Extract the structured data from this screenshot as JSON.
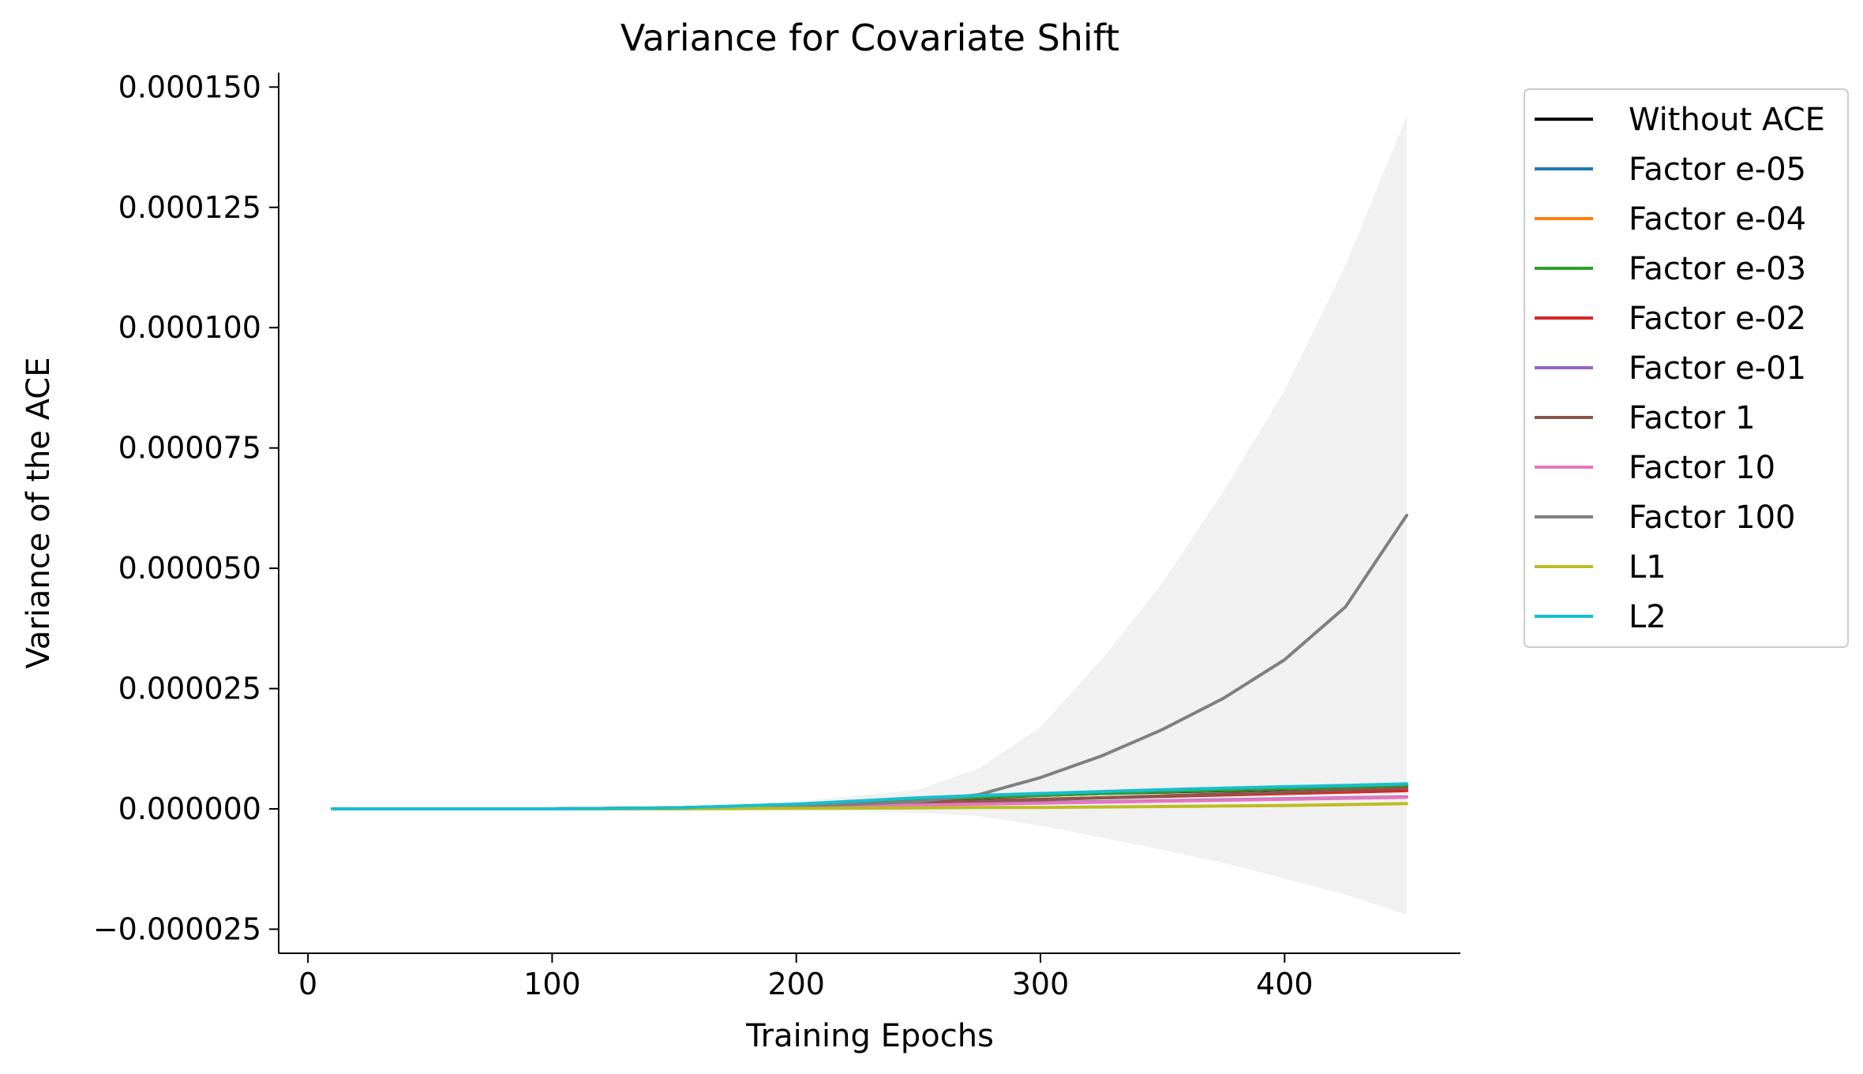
{
  "chart_data": {
    "type": "line",
    "title": "Variance for Covariate Shift",
    "xlabel": "Training Epochs",
    "ylabel": "Variance of the ACE",
    "xlim": [
      -12,
      472
    ],
    "ylim": [
      -3e-05,
      0.000153
    ],
    "x_ticks": [
      0,
      100,
      200,
      300,
      400
    ],
    "x_tick_labels": [
      "0",
      "100",
      "200",
      "300",
      "400"
    ],
    "y_ticks": [
      -2.5e-05,
      0,
      2.5e-05,
      5e-05,
      7.5e-05,
      0.0001,
      0.000125,
      0.00015
    ],
    "y_tick_labels": [
      "−0.000025",
      "0.000000",
      "0.000025",
      "0.000050",
      "0.000075",
      "0.000100",
      "0.000125",
      "0.000150"
    ],
    "grid": false,
    "legend_position": "outside-right",
    "x": [
      10,
      50,
      100,
      150,
      200,
      250,
      275,
      300,
      325,
      350,
      375,
      400,
      425,
      450
    ],
    "series": [
      {
        "name": "Without ACE",
        "color": "#000000",
        "values": [
          0,
          0,
          0,
          2e-07,
          8e-07,
          1.8e-06,
          2.3e-06,
          2.8e-06,
          3.2e-06,
          3.5e-06,
          3.8e-06,
          4.1e-06,
          4.4e-06,
          4.7e-06
        ]
      },
      {
        "name": "Factor e-05",
        "color": "#1f77b4",
        "values": [
          0,
          0,
          0,
          2e-07,
          9e-07,
          2e-06,
          2.5e-06,
          3e-06,
          3.4e-06,
          3.8e-06,
          4.1e-06,
          4.4e-06,
          4.7e-06,
          5e-06
        ]
      },
      {
        "name": "Factor e-04",
        "color": "#ff7f0e",
        "values": [
          0,
          0,
          0,
          2e-07,
          8e-07,
          1.9e-06,
          2.4e-06,
          2.9e-06,
          3.3e-06,
          3.6e-06,
          3.9e-06,
          4.2e-06,
          4.5e-06,
          4.8e-06
        ]
      },
      {
        "name": "Factor e-03",
        "color": "#2ca02c",
        "values": [
          0,
          0,
          0,
          2e-07,
          8e-07,
          1.9e-06,
          2.4e-06,
          2.8e-06,
          3.2e-06,
          3.6e-06,
          3.9e-06,
          4.2e-06,
          4.5e-06,
          4.7e-06
        ]
      },
      {
        "name": "Factor e-02",
        "color": "#d62728",
        "values": [
          0,
          0,
          0,
          1e-07,
          6e-07,
          1.3e-06,
          1.7e-06,
          2e-06,
          2.3e-06,
          2.6e-06,
          2.9e-06,
          3.2e-06,
          3.5e-06,
          3.8e-06
        ]
      },
      {
        "name": "Factor e-01",
        "color": "#9467bd",
        "values": [
          0,
          0,
          0,
          1e-07,
          4e-07,
          9e-07,
          1.1e-06,
          1.3e-06,
          1.5e-06,
          1.7e-06,
          1.9e-06,
          2.1e-06,
          2.3e-06,
          2.5e-06
        ]
      },
      {
        "name": "Factor 1",
        "color": "#8c564b",
        "values": [
          0,
          0,
          0,
          1e-07,
          5e-07,
          1.2e-06,
          1.6e-06,
          1.9e-06,
          2.3e-06,
          2.7e-06,
          3.1e-06,
          3.5e-06,
          3.9e-06,
          4.3e-06
        ]
      },
      {
        "name": "Factor 10",
        "color": "#e377c2",
        "values": [
          0,
          0,
          0,
          1e-07,
          4e-07,
          8e-07,
          1e-06,
          1.2e-06,
          1.4e-06,
          1.6e-06,
          1.8e-06,
          2e-06,
          2.2e-06,
          2.4e-06
        ]
      },
      {
        "name": "Factor 100",
        "color": "#7f7f7f",
        "values": [
          0,
          0,
          0,
          1e-07,
          5e-07,
          1.5e-06,
          3e-06,
          6.5e-06,
          1.1e-05,
          1.65e-05,
          2.3e-05,
          3.1e-05,
          4.2e-05,
          6.1e-05
        ],
        "band_lower": [
          0,
          0,
          0,
          0,
          -3e-07,
          -8e-07,
          -1.5e-06,
          -3.5e-06,
          -6e-06,
          -8.5e-06,
          -1.12e-05,
          -1.45e-05,
          -1.78e-05,
          -2.2e-05
        ],
        "band_upper": [
          0,
          0,
          0,
          2e-07,
          1.5e-06,
          4e-06,
          8.5e-06,
          1.7e-05,
          3.1e-05,
          4.7e-05,
          6.6e-05,
          8.7e-05,
          0.000113,
          0.000144
        ]
      },
      {
        "name": "L1",
        "color": "#bcbd22",
        "values": [
          0,
          0,
          0,
          0,
          1e-07,
          2e-07,
          3e-07,
          3e-07,
          4e-07,
          5e-07,
          6e-07,
          7e-07,
          9e-07,
          1.1e-06
        ]
      },
      {
        "name": "L2",
        "color": "#17becf",
        "values": [
          0,
          0,
          0,
          2e-07,
          1e-06,
          2.3e-06,
          2.8e-06,
          3.2e-06,
          3.6e-06,
          4e-06,
          4.3e-06,
          4.6e-06,
          4.9e-06,
          5.2e-06
        ]
      }
    ]
  }
}
